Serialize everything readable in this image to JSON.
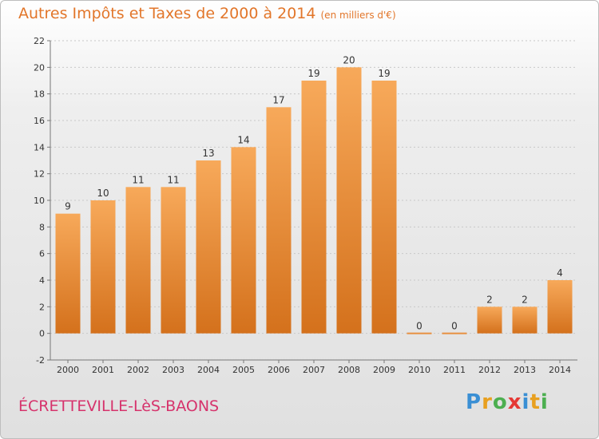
{
  "header": {
    "title": "Autres Impôts et Taxes de 2000 à 2014",
    "subtitle": "(en milliers d'€)"
  },
  "footer": {
    "commune": "ÉCRETTEVILLE-LèS-BAONS",
    "logo_letters": [
      "P",
      "r",
      "o",
      "x",
      "i",
      "t",
      "i"
    ]
  },
  "colors": {
    "title": "#e2762a",
    "commune": "#d6336c",
    "bar_light": "#f7a95a",
    "bar_dark": "#d4711c",
    "logo": [
      "#3a8fd4",
      "#e8a020",
      "#4caf50",
      "#e53935",
      "#3a8fd4",
      "#e8a020",
      "#4caf50"
    ]
  },
  "chart_data": {
    "type": "bar",
    "title": "Autres Impôts et Taxes de 2000 à 2014",
    "subtitle": "(en milliers d'€)",
    "categories": [
      "2000",
      "2001",
      "2002",
      "2003",
      "2004",
      "2005",
      "2006",
      "2007",
      "2008",
      "2009",
      "2010",
      "2011",
      "2012",
      "2013",
      "2014"
    ],
    "values": [
      9,
      10,
      11,
      11,
      13,
      14,
      17,
      19,
      20,
      19,
      0,
      0,
      2,
      2,
      4
    ],
    "ylim": [
      -2,
      22
    ],
    "yticks": [
      -2,
      0,
      2,
      4,
      6,
      8,
      10,
      12,
      14,
      16,
      18,
      20,
      22
    ],
    "grid": true,
    "data_labels": true
  }
}
